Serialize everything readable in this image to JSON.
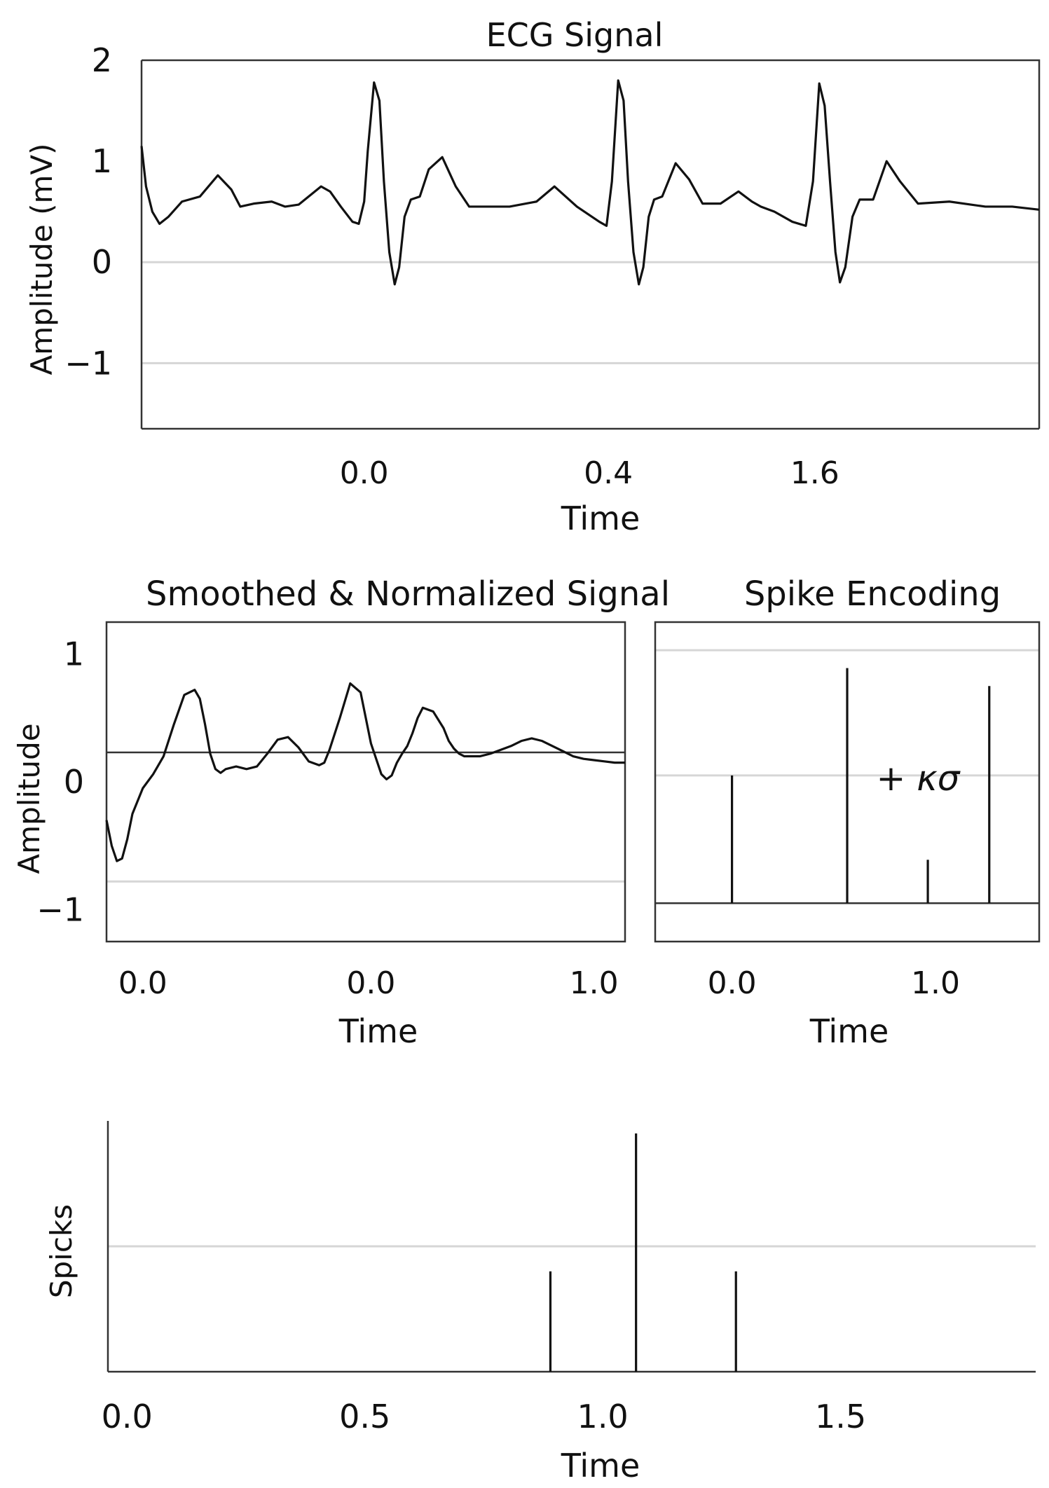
{
  "colors": {
    "line": "#111111",
    "grid": "#d6d6d6",
    "axis": "#333333",
    "background": "#ffffff"
  },
  "chart_data": [
    {
      "id": "ecg",
      "type": "line",
      "title": "ECG Signal",
      "xlabel": "Time",
      "ylabel": "Amplitude (mV)",
      "ylim": [
        -1.65,
        2.0
      ],
      "yticks": [
        -1,
        0,
        1,
        2
      ],
      "ytick_labels": [
        "−1",
        "0",
        "1",
        "2"
      ],
      "gridlines_y": [
        0,
        -1
      ],
      "xticks": [
        {
          "label": "0.0",
          "frac": 0.248
        },
        {
          "label": "0.4",
          "frac": 0.52
        },
        {
          "label": "1.6",
          "frac": 0.75
        }
      ],
      "series": [
        {
          "name": "ecg",
          "x": [
            0,
            0.005,
            0.012,
            0.02,
            0.03,
            0.045,
            0.065,
            0.085,
            0.1,
            0.11,
            0.125,
            0.145,
            0.16,
            0.175,
            0.2,
            0.21,
            0.222,
            0.235,
            0.242,
            0.248,
            0.252,
            0.259,
            0.265,
            0.27,
            0.276,
            0.282,
            0.287,
            0.293,
            0.3,
            0.31,
            0.32,
            0.335,
            0.35,
            0.365,
            0.38,
            0.41,
            0.44,
            0.46,
            0.485,
            0.51,
            0.518,
            0.524,
            0.531,
            0.537,
            0.542,
            0.548,
            0.554,
            0.559,
            0.565,
            0.571,
            0.58,
            0.595,
            0.61,
            0.625,
            0.645,
            0.665,
            0.68,
            0.69,
            0.705,
            0.725,
            0.74,
            0.748,
            0.755,
            0.761,
            0.767,
            0.773,
            0.778,
            0.784,
            0.792,
            0.8,
            0.815,
            0.83,
            0.845,
            0.865,
            0.9,
            0.94,
            0.97,
            1.0
          ],
          "y": [
            1.15,
            0.75,
            0.5,
            0.38,
            0.45,
            0.6,
            0.65,
            0.86,
            0.72,
            0.55,
            0.58,
            0.6,
            0.55,
            0.57,
            0.75,
            0.7,
            0.55,
            0.4,
            0.38,
            0.6,
            1.1,
            1.78,
            1.6,
            0.8,
            0.1,
            -0.22,
            -0.05,
            0.45,
            0.62,
            0.65,
            0.92,
            1.04,
            0.75,
            0.55,
            0.55,
            0.55,
            0.6,
            0.75,
            0.55,
            0.4,
            0.36,
            0.8,
            1.8,
            1.6,
            0.8,
            0.1,
            -0.22,
            -0.05,
            0.45,
            0.62,
            0.65,
            0.98,
            0.82,
            0.58,
            0.58,
            0.7,
            0.6,
            0.55,
            0.5,
            0.4,
            0.36,
            0.8,
            1.77,
            1.55,
            0.8,
            0.1,
            -0.2,
            -0.05,
            0.45,
            0.62,
            0.62,
            1.0,
            0.8,
            0.58,
            0.6,
            0.55,
            0.55,
            0.52
          ]
        }
      ]
    },
    {
      "id": "smoothed",
      "type": "line",
      "title": "Smoothed & Normalized Signal",
      "xlabel": "Time",
      "ylabel": "Amplitude",
      "ylim": [
        -1.25,
        1.25
      ],
      "yticks": [
        -1,
        0,
        1
      ],
      "ytick_labels": [
        "−1",
        "0",
        "1"
      ],
      "gridlines_y": [
        -0.78
      ],
      "threshold_y": 0.23,
      "xticks": [
        {
          "label": "0.0",
          "frac": 0.07
        },
        {
          "label": "0.0",
          "frac": 0.51
        },
        {
          "label": "1.0",
          "frac": 0.94
        }
      ],
      "series": [
        {
          "name": "smoothed",
          "x": [
            0,
            0.01,
            0.02,
            0.03,
            0.04,
            0.05,
            0.07,
            0.09,
            0.11,
            0.13,
            0.15,
            0.17,
            0.18,
            0.19,
            0.2,
            0.21,
            0.22,
            0.23,
            0.25,
            0.27,
            0.29,
            0.31,
            0.33,
            0.35,
            0.37,
            0.39,
            0.41,
            0.42,
            0.43,
            0.45,
            0.47,
            0.49,
            0.51,
            0.53,
            0.54,
            0.55,
            0.56,
            0.57,
            0.58,
            0.59,
            0.6,
            0.61,
            0.63,
            0.65,
            0.66,
            0.67,
            0.68,
            0.69,
            0.7,
            0.72,
            0.74,
            0.76,
            0.78,
            0.8,
            0.82,
            0.84,
            0.86,
            0.88,
            0.9,
            0.92,
            0.94,
            0.96,
            0.98,
            1.0
          ],
          "y": [
            -0.3,
            -0.5,
            -0.62,
            -0.6,
            -0.45,
            -0.25,
            -0.05,
            0.06,
            0.2,
            0.45,
            0.68,
            0.72,
            0.65,
            0.45,
            0.22,
            0.1,
            0.07,
            0.1,
            0.12,
            0.1,
            0.12,
            0.22,
            0.33,
            0.35,
            0.27,
            0.16,
            0.13,
            0.15,
            0.25,
            0.5,
            0.77,
            0.7,
            0.3,
            0.06,
            0.02,
            0.05,
            0.15,
            0.22,
            0.28,
            0.38,
            0.5,
            0.58,
            0.55,
            0.42,
            0.32,
            0.26,
            0.22,
            0.2,
            0.2,
            0.2,
            0.22,
            0.25,
            0.28,
            0.32,
            0.34,
            0.32,
            0.28,
            0.24,
            0.2,
            0.18,
            0.17,
            0.16,
            0.15,
            0.15
          ]
        }
      ]
    },
    {
      "id": "spike_encoding",
      "type": "spike",
      "title": "Spike Encoding",
      "xlabel": "Time",
      "ylim": [
        -1.3,
        1.2
      ],
      "gridlines_y": [
        0.98,
        0.0
      ],
      "baseline_y": -1.0,
      "annotation": "+ κσ",
      "xticks": [
        {
          "label": "0.0",
          "frac": 0.2
        },
        {
          "label": "1.0",
          "frac": 0.73
        }
      ],
      "spikes": [
        {
          "x": 0.2,
          "height": 0.0
        },
        {
          "x": 0.5,
          "height": 0.84
        },
        {
          "x": 0.71,
          "height": -0.66
        },
        {
          "x": 0.87,
          "height": 0.7
        }
      ]
    },
    {
      "id": "spikes",
      "type": "spike",
      "xlabel": "Time",
      "ylabel": "Spicks",
      "xlim": [
        -0.04,
        1.91
      ],
      "ylim": [
        0,
        1.0
      ],
      "gridlines_y": [
        0.5
      ],
      "xticks": [
        0.0,
        0.5,
        1.0,
        1.5
      ],
      "xtick_labels": [
        "0.0",
        "0.5",
        "1.0",
        "1.5"
      ],
      "spikes": [
        {
          "x": 0.89,
          "height": 0.4
        },
        {
          "x": 1.07,
          "height": 0.95
        },
        {
          "x": 1.28,
          "height": 0.4
        }
      ]
    }
  ]
}
